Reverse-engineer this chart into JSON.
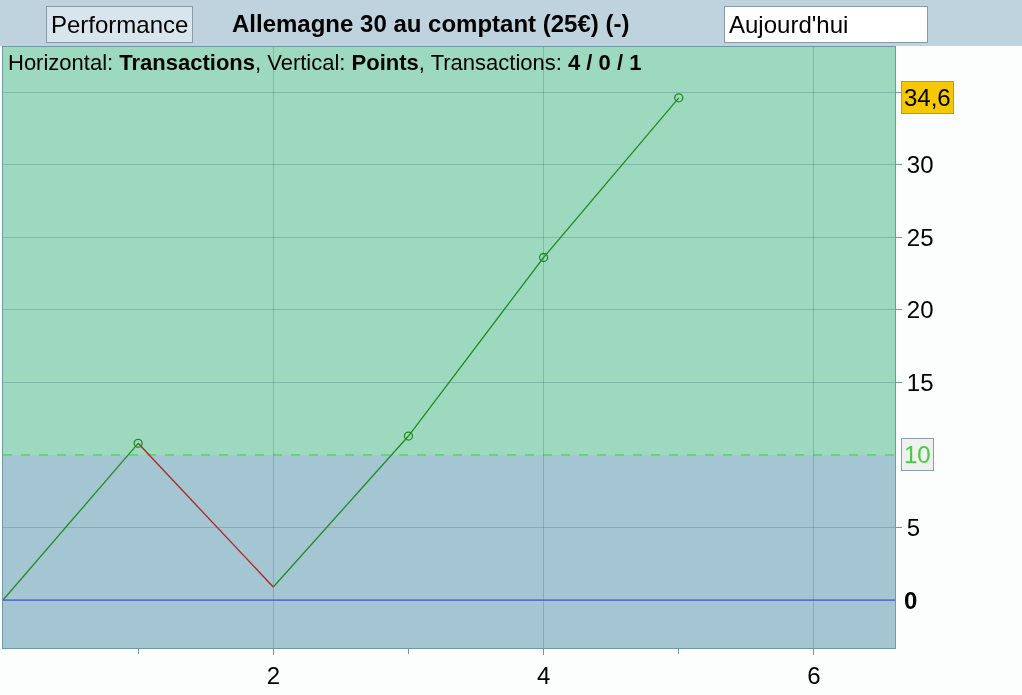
{
  "chart_data": {
    "type": "line",
    "title": "Allemagne 30 au comptant (25€) (-)",
    "subtitle": "Horizontal: Transactions, Vertical: Points, Transactions: 4 / 0 / 1",
    "annotations": [
      "Performance",
      "Aujourd'hui",
      "34,6"
    ],
    "series": [
      {
        "color": "#228b22",
        "x": [
          0,
          1
        ],
        "values": [
          0,
          10.8
        ]
      },
      {
        "color": "#b22222",
        "x": [
          1,
          2
        ],
        "values": [
          10.8,
          0.9
        ]
      },
      {
        "color": "#228b22",
        "x": [
          2,
          3,
          4,
          5
        ],
        "values": [
          0.9,
          11.3,
          23.6,
          34.6
        ]
      },
      {
        "type": "scatter",
        "color": "#228b22",
        "marker": "circle",
        "x": [
          1,
          3,
          4,
          5
        ],
        "values": [
          10.8,
          11.3,
          23.6,
          34.6
        ]
      }
    ],
    "xlim": [
      0,
      6.6
    ],
    "xticks": [
      {
        "value": 1,
        "label": null
      },
      2,
      {
        "value": 3,
        "label": null
      },
      4,
      {
        "value": 5,
        "label": null
      },
      6
    ],
    "ylim": [
      -3.3,
      38.1
    ],
    "yticks": [
      5,
      15,
      20,
      25,
      30,
      {
        "value": 35,
        "label": null
      }
    ],
    "ref_lines": [
      {
        "axis": "y",
        "value": 0,
        "label": "0",
        "color": "#2233cc",
        "line_style": "solid"
      },
      {
        "axis": "y",
        "value": 10,
        "label": "10",
        "color": "#44cc44",
        "line_style": "dashed"
      }
    ],
    "bands": [
      {
        "axis": "y",
        "from": 10,
        "to": 38.1,
        "color": "#9dd9bf"
      },
      {
        "axis": "y",
        "from": -3.3,
        "to": 10,
        "color": "#a4c5d2"
      }
    ],
    "grid": true
  }
}
